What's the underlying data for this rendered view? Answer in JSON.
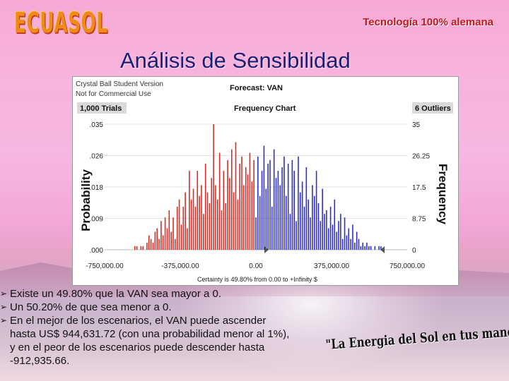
{
  "slide": {
    "logo": "ECUASOL",
    "tagline": "Tecnología 100% alemana",
    "title": "Análisis de Sensibilidad",
    "slogan": "\"La Energia del Sol en tus manos\"",
    "bullets": [
      "Existe un 49.80% que la VAN sea mayor a 0.",
      "Un 50.20% de que sea menor a 0.",
      "En el mejor de los escenarios, el VAN puede ascender\nhasta US$ 944,631.72 (con una probabilidad menor al 1%),\ny en el peor de los escenarios puede descender hasta\n-912,935.66."
    ]
  },
  "crystal_ball": {
    "version_line1": "Crystal Ball Student Version",
    "version_line2": "Not for Commercial Use",
    "forecast": "Forecast: VAN",
    "trials": "1,000 Trials",
    "chart_name": "Frequency Chart",
    "outliers": "6 Outliers",
    "certainty": "Certainty is 49.80% from 0.00 to +Infinity $"
  },
  "chart_data": {
    "type": "bar",
    "ylabel_left": "Probability",
    "ylabel_right": "Frequency",
    "left_ticks": [
      ".000",
      ".009",
      ".018",
      ".026",
      ".035"
    ],
    "right_ticks": [
      "0",
      "8.75",
      "17.5",
      "26.25",
      "35"
    ],
    "x_ticks": [
      "-750,000.00",
      "-375,000.00",
      "0.00",
      "375,000.00",
      "750,000.00"
    ],
    "xlim": [
      -750000,
      750000
    ],
    "ylim": [
      0,
      35
    ],
    "colors": {
      "below_zero": "#e0261f",
      "above_zero": "#2b2bd6"
    },
    "bin_centers": [
      -600000,
      -590000,
      -580000,
      -570000,
      -560000,
      -550000,
      -540000,
      -530000,
      -520000,
      -510000,
      -500000,
      -490000,
      -480000,
      -470000,
      -460000,
      -450000,
      -440000,
      -430000,
      -420000,
      -410000,
      -400000,
      -390000,
      -380000,
      -370000,
      -360000,
      -350000,
      -340000,
      -330000,
      -320000,
      -310000,
      -300000,
      -290000,
      -280000,
      -270000,
      -260000,
      -250000,
      -240000,
      -230000,
      -220000,
      -210000,
      -200000,
      -190000,
      -180000,
      -170000,
      -160000,
      -150000,
      -140000,
      -130000,
      -120000,
      -110000,
      -100000,
      -90000,
      -80000,
      -70000,
      -60000,
      -50000,
      -40000,
      -30000,
      -20000,
      -10000,
      0,
      10000,
      20000,
      30000,
      40000,
      50000,
      60000,
      70000,
      80000,
      90000,
      100000,
      110000,
      120000,
      130000,
      140000,
      150000,
      160000,
      170000,
      180000,
      190000,
      200000,
      210000,
      220000,
      230000,
      240000,
      250000,
      260000,
      270000,
      280000,
      290000,
      300000,
      310000,
      320000,
      330000,
      340000,
      350000,
      360000,
      370000,
      380000,
      390000,
      400000,
      410000,
      420000,
      430000,
      440000,
      450000,
      460000,
      470000,
      480000,
      490000,
      500000,
      510000,
      520000,
      530000,
      540000,
      550000,
      560000,
      570000,
      580000,
      590000,
      600000,
      610000,
      620000,
      630000,
      640000,
      650000,
      660000
    ],
    "frequencies": [
      1,
      1,
      0,
      1,
      1,
      0,
      2,
      4,
      3,
      2,
      5,
      6,
      3,
      8,
      4,
      9,
      6,
      11,
      5,
      9,
      3,
      12,
      14,
      7,
      12,
      16,
      6,
      22,
      14,
      17,
      12,
      22,
      15,
      18,
      10,
      24,
      16,
      13,
      20,
      35,
      18,
      14,
      27,
      11,
      22,
      13,
      25,
      20,
      28,
      16,
      30,
      14,
      24,
      26,
      18,
      23,
      21,
      27,
      19,
      25,
      9,
      26,
      15,
      22,
      29,
      17,
      24,
      25,
      12,
      28,
      20,
      22,
      18,
      23,
      26,
      15,
      24,
      10,
      25,
      22,
      8,
      26,
      16,
      19,
      12,
      23,
      14,
      9,
      18,
      15,
      22,
      13,
      8,
      17,
      10,
      11,
      6,
      12,
      7,
      14,
      5,
      8,
      10,
      3,
      9,
      4,
      6,
      3,
      7,
      2,
      5,
      3,
      1,
      2,
      1,
      2,
      1,
      1,
      0,
      1,
      0,
      1,
      1
    ]
  }
}
